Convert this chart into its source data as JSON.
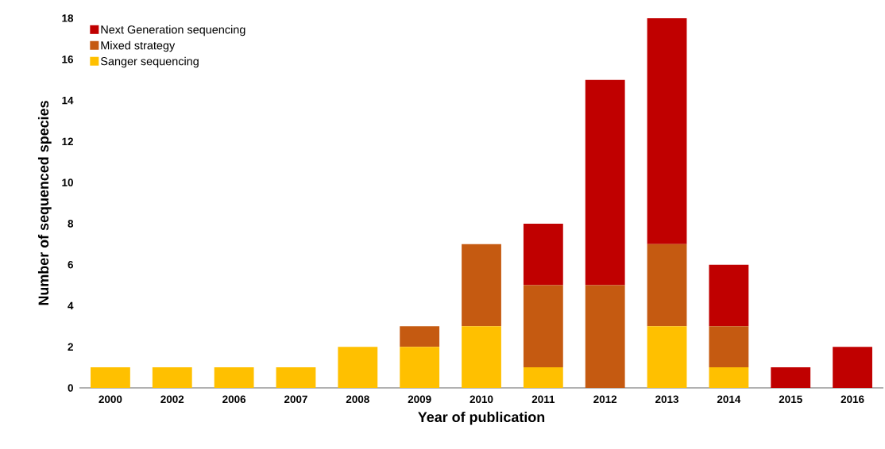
{
  "chart_data": {
    "type": "bar",
    "stacked": true,
    "xlabel": "Year of publication",
    "ylabel": "Number of sequenced species",
    "categories": [
      "2000",
      "2002",
      "2006",
      "2007",
      "2008",
      "2009",
      "2010",
      "2011",
      "2012",
      "2013",
      "2014",
      "2015",
      "2016"
    ],
    "series": [
      {
        "name": "Sanger sequencing",
        "color": "#ffc000",
        "values": [
          1,
          1,
          1,
          1,
          2,
          2,
          3,
          1,
          0,
          3,
          1,
          0,
          0
        ]
      },
      {
        "name": "Mixed strategy",
        "color": "#c55a11",
        "values": [
          0,
          0,
          0,
          0,
          0,
          1,
          4,
          4,
          5,
          4,
          2,
          0,
          0
        ]
      },
      {
        "name": "Next Generation sequencing",
        "color": "#c00000",
        "values": [
          0,
          0,
          0,
          0,
          0,
          0,
          0,
          3,
          10,
          11,
          3,
          1,
          2
        ]
      }
    ],
    "ylim": [
      0,
      18
    ],
    "yticks": [
      0,
      2,
      4,
      6,
      8,
      10,
      12,
      14,
      16,
      18
    ],
    "legend": "top left",
    "grid": false
  }
}
